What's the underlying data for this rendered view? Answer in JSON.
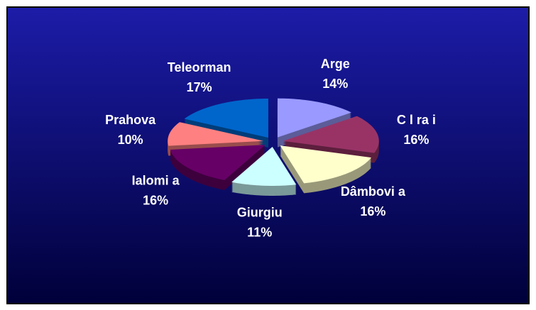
{
  "chart_data": {
    "type": "pie",
    "categories": [
      "Arge",
      "C l ra i",
      "Dâmbovi a",
      "Giurgiu",
      "Ialomi a",
      "Prahova",
      "Teleorman"
    ],
    "values": [
      14,
      16,
      16,
      11,
      16,
      10,
      17
    ],
    "value_labels": [
      "14%",
      "16%",
      "16%",
      "11%",
      "16%",
      "10%",
      "17%"
    ],
    "colors": [
      "#9999ff",
      "#993366",
      "#ffffcc",
      "#ccffff",
      "#660066",
      "#ff8080",
      "#0066cc"
    ]
  }
}
